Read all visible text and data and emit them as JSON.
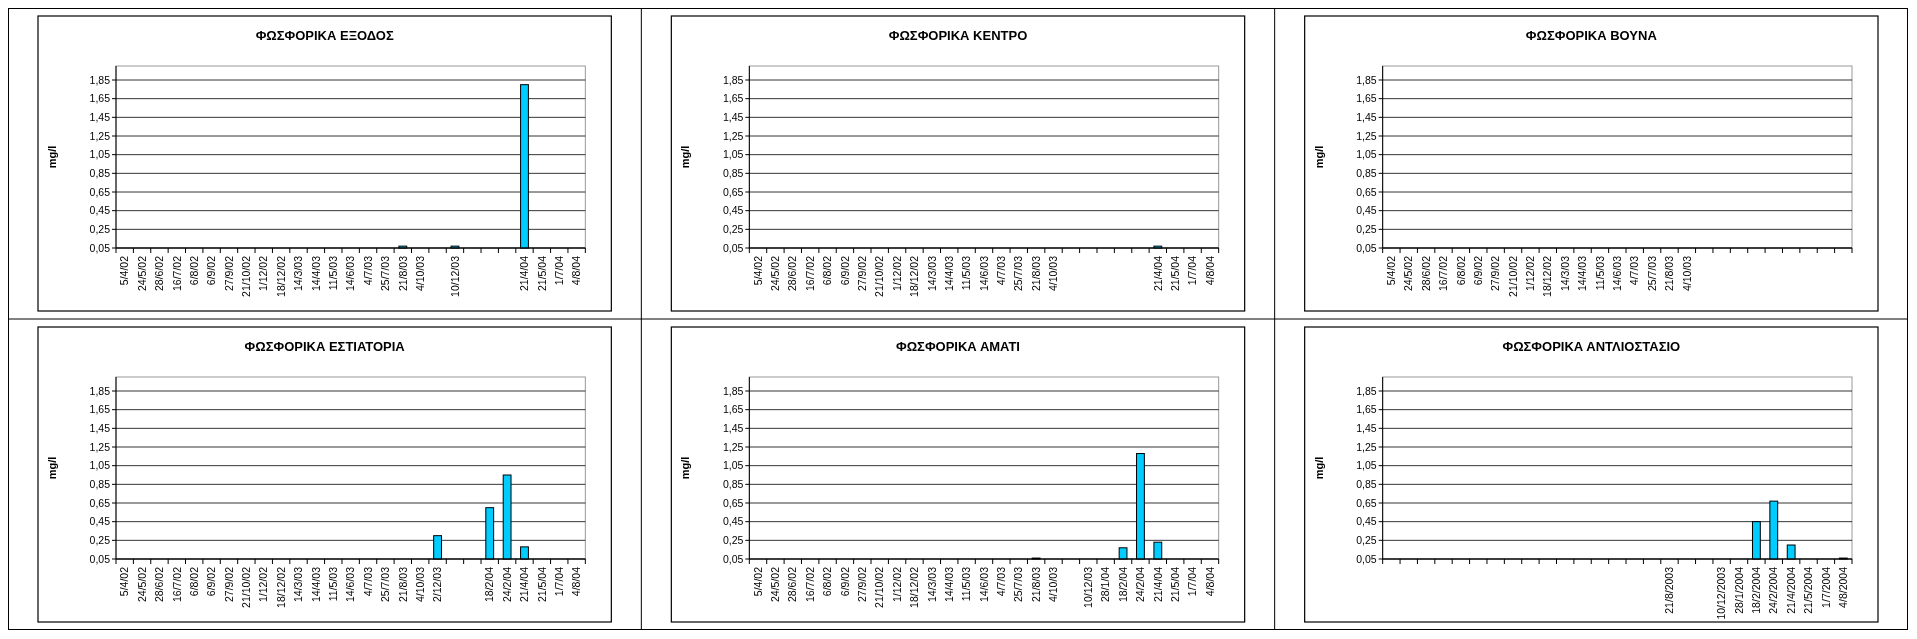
{
  "chart_data": [
    {
      "type": "bar",
      "title": "ΦΩΣΦΟΡΙΚΑ ΕΞΟΔΟΣ",
      "ylabel": "mg/l",
      "color": "#00ccff",
      "grid": "y",
      "ylim": [
        0.05,
        2
      ],
      "yticks": [
        {
          "value": 0.05,
          "label": "0,05"
        },
        {
          "value": 0.25,
          "label": "0,25"
        },
        {
          "value": 0.45,
          "label": "0,45"
        },
        {
          "value": 0.65,
          "label": "0,65"
        },
        {
          "value": 0.85,
          "label": "0,85"
        },
        {
          "value": 1.05,
          "label": "1,05"
        },
        {
          "value": 1.25,
          "label": "1,25"
        },
        {
          "value": 1.45,
          "label": "1,45"
        },
        {
          "value": 1.65,
          "label": "1,65"
        },
        {
          "value": 1.85,
          "label": "1,85"
        }
      ],
      "categories": [
        "5/4/02",
        "24/5/02",
        "28/6/02",
        "16/7/02",
        "6/8/02",
        "6/9/02",
        "27/9/02",
        "21/10/02",
        "1/12/02",
        "18/12/02",
        "14/3/03",
        "14/4/03",
        "11/5/03",
        "14/6/03",
        "4/7/03",
        "25/7/03",
        "21/8/03",
        "4/10/03",
        null,
        "10/12/03",
        null,
        null,
        null,
        "21/4/04",
        "21/5/04",
        "1/7/04",
        "4/8/04"
      ],
      "values": [
        null,
        null,
        null,
        null,
        null,
        null,
        null,
        null,
        null,
        null,
        null,
        null,
        null,
        null,
        null,
        null,
        0.07,
        null,
        null,
        0.07,
        null,
        null,
        null,
        1.8,
        null,
        null,
        null
      ]
    },
    {
      "type": "bar",
      "title": "ΦΩΣΦΟΡΙΚΑ ΚΕΝΤΡΟ",
      "ylabel": "mg/l",
      "color": "#00ccff",
      "grid": "y",
      "ylim": [
        0.05,
        2
      ],
      "yticks": [
        {
          "value": 0.05,
          "label": "0,05"
        },
        {
          "value": 0.25,
          "label": "0,25"
        },
        {
          "value": 0.45,
          "label": "0,45"
        },
        {
          "value": 0.65,
          "label": "0,65"
        },
        {
          "value": 0.85,
          "label": "0,85"
        },
        {
          "value": 1.05,
          "label": "1,05"
        },
        {
          "value": 1.25,
          "label": "1,25"
        },
        {
          "value": 1.45,
          "label": "1,45"
        },
        {
          "value": 1.65,
          "label": "1,65"
        },
        {
          "value": 1.85,
          "label": "1,85"
        }
      ],
      "categories": [
        "5/4/02",
        "24/5/02",
        "28/6/02",
        "16/7/02",
        "6/8/02",
        "6/9/02",
        "27/9/02",
        "21/10/02",
        "1/12/02",
        "18/12/02",
        "14/3/03",
        "14/4/03",
        "11/5/03",
        "14/6/03",
        "4/7/03",
        "25/7/03",
        "21/8/03",
        "4/10/03",
        null,
        null,
        null,
        null,
        null,
        "21/4/04",
        "21/5/04",
        "1/7/04",
        "4/8/04"
      ],
      "values": [
        null,
        null,
        null,
        null,
        null,
        null,
        null,
        null,
        null,
        null,
        null,
        null,
        null,
        null,
        null,
        null,
        null,
        null,
        null,
        null,
        null,
        null,
        null,
        0.07,
        null,
        null,
        null
      ]
    },
    {
      "type": "bar",
      "title": "ΦΩΣΦΟΡΙΚΑ ΒΟΥΝΑ",
      "ylabel": "mg/l",
      "grid": "y",
      "ylim": [
        0.05,
        2
      ],
      "yticks": [
        {
          "value": 0.05,
          "label": "0,05"
        },
        {
          "value": 0.25,
          "label": "0,25"
        },
        {
          "value": 0.45,
          "label": "0,45"
        },
        {
          "value": 0.65,
          "label": "0,65"
        },
        {
          "value": 0.85,
          "label": "0,85"
        },
        {
          "value": 1.05,
          "label": "1,05"
        },
        {
          "value": 1.25,
          "label": "1,25"
        },
        {
          "value": 1.45,
          "label": "1,45"
        },
        {
          "value": 1.65,
          "label": "1,65"
        },
        {
          "value": 1.85,
          "label": "1,85"
        }
      ],
      "categories": [
        "5/4/02",
        "24/5/02",
        "28/6/02",
        "16/7/02",
        "6/8/02",
        "6/9/02",
        "27/9/02",
        "21/10/02",
        "1/12/02",
        "18/12/02",
        "14/3/03",
        "14/4/03",
        "11/5/03",
        "14/6/03",
        "4/7/03",
        "25/7/03",
        "21/8/03",
        "4/10/03",
        null,
        null,
        null,
        null,
        null,
        null,
        null,
        null,
        null
      ],
      "values": [
        null,
        null,
        null,
        null,
        null,
        null,
        null,
        null,
        null,
        null,
        null,
        null,
        null,
        null,
        null,
        null,
        null,
        null,
        null,
        null,
        null,
        null,
        null,
        null,
        null,
        null,
        null
      ]
    },
    {
      "type": "bar",
      "title": "ΦΩΣΦΟΡΙΚΑ ΕΣΤΙΑΤΟΡΙΑ",
      "ylabel": "mg/l",
      "color": "#00ccff",
      "grid": "y",
      "ylim": [
        0.05,
        2
      ],
      "yticks": [
        {
          "value": 0.05,
          "label": "0,05"
        },
        {
          "value": 0.25,
          "label": "0,25"
        },
        {
          "value": 0.45,
          "label": "0,45"
        },
        {
          "value": 0.65,
          "label": "0,65"
        },
        {
          "value": 0.85,
          "label": "0,85"
        },
        {
          "value": 1.05,
          "label": "1,05"
        },
        {
          "value": 1.25,
          "label": "1,25"
        },
        {
          "value": 1.45,
          "label": "1,45"
        },
        {
          "value": 1.65,
          "label": "1,65"
        },
        {
          "value": 1.85,
          "label": "1,85"
        }
      ],
      "categories": [
        "5/4/02",
        "24/5/02",
        "28/6/02",
        "16/7/02",
        "6/8/02",
        "6/9/02",
        "27/9/02",
        "21/10/02",
        "1/12/02",
        "18/12/02",
        "14/3/03",
        "14/4/03",
        "11/5/03",
        "14/6/03",
        "4/7/03",
        "25/7/03",
        "21/8/03",
        "4/10/03",
        "2/12/03",
        null,
        null,
        "18/2/04",
        "24/2/04",
        "21/4/04",
        "21/5/04",
        "1/7/04",
        "4/8/04"
      ],
      "values": [
        null,
        null,
        null,
        null,
        null,
        null,
        null,
        null,
        null,
        null,
        null,
        null,
        null,
        null,
        null,
        null,
        null,
        null,
        0.3,
        null,
        null,
        0.6,
        0.95,
        0.18,
        null,
        null,
        null
      ]
    },
    {
      "type": "bar",
      "title": "ΦΩΣΦΟΡΙΚΑ ΑΜΑΤΙ",
      "ylabel": "mg/l",
      "color": "#00ccff",
      "grid": "y",
      "ylim": [
        0.05,
        2
      ],
      "yticks": [
        {
          "value": 0.05,
          "label": "0,05"
        },
        {
          "value": 0.25,
          "label": "0,25"
        },
        {
          "value": 0.45,
          "label": "0,45"
        },
        {
          "value": 0.65,
          "label": "0,65"
        },
        {
          "value": 0.85,
          "label": "0,85"
        },
        {
          "value": 1.05,
          "label": "1,05"
        },
        {
          "value": 1.25,
          "label": "1,25"
        },
        {
          "value": 1.45,
          "label": "1,45"
        },
        {
          "value": 1.65,
          "label": "1,65"
        },
        {
          "value": 1.85,
          "label": "1,85"
        }
      ],
      "categories": [
        "5/4/02",
        "24/5/02",
        "28/6/02",
        "16/7/02",
        "6/8/02",
        "6/9/02",
        "27/9/02",
        "21/10/02",
        "1/12/02",
        "18/12/02",
        "14/3/03",
        "14/4/03",
        "11/5/03",
        "14/6/03",
        "4/7/03",
        "25/7/03",
        "21/8/03",
        "4/10/03",
        null,
        "10/12/03",
        "28/1/04",
        "18/2/04",
        "24/2/04",
        "21/4/04",
        "21/5/04",
        "1/7/04",
        "4/8/04"
      ],
      "values": [
        null,
        null,
        null,
        null,
        null,
        null,
        null,
        null,
        null,
        null,
        null,
        null,
        null,
        null,
        null,
        null,
        0.06,
        null,
        null,
        null,
        null,
        0.17,
        1.18,
        0.23,
        null,
        null,
        null
      ]
    },
    {
      "type": "bar",
      "title": "ΦΩΣΦΟΡΙΚΑ ΑΝΤΛΙΟΣΤΑΣΙΟ",
      "ylabel": "mg/l",
      "color": "#00ccff",
      "grid": "y",
      "ylim": [
        0.05,
        2
      ],
      "yticks": [
        {
          "value": 0.05,
          "label": "0,05"
        },
        {
          "value": 0.25,
          "label": "0,25"
        },
        {
          "value": 0.45,
          "label": "0,45"
        },
        {
          "value": 0.65,
          "label": "0,65"
        },
        {
          "value": 0.85,
          "label": "0,85"
        },
        {
          "value": 1.05,
          "label": "1,05"
        },
        {
          "value": 1.25,
          "label": "1,25"
        },
        {
          "value": 1.45,
          "label": "1,45"
        },
        {
          "value": 1.65,
          "label": "1,65"
        },
        {
          "value": 1.85,
          "label": "1,85"
        }
      ],
      "categories": [
        null,
        null,
        null,
        null,
        null,
        null,
        null,
        null,
        null,
        null,
        null,
        null,
        null,
        null,
        null,
        null,
        "21/8/2003",
        null,
        null,
        "10/12/2003",
        "28/1/2004",
        "18/2/2004",
        "24/2/2004",
        "21/4/2004",
        "21/5/2004",
        "1/7/2004",
        "4/8/2004"
      ],
      "values": [
        null,
        null,
        null,
        null,
        null,
        null,
        null,
        null,
        null,
        null,
        null,
        null,
        null,
        null,
        null,
        null,
        null,
        null,
        null,
        null,
        null,
        0.45,
        0.67,
        0.2,
        null,
        null,
        0.06
      ]
    }
  ]
}
